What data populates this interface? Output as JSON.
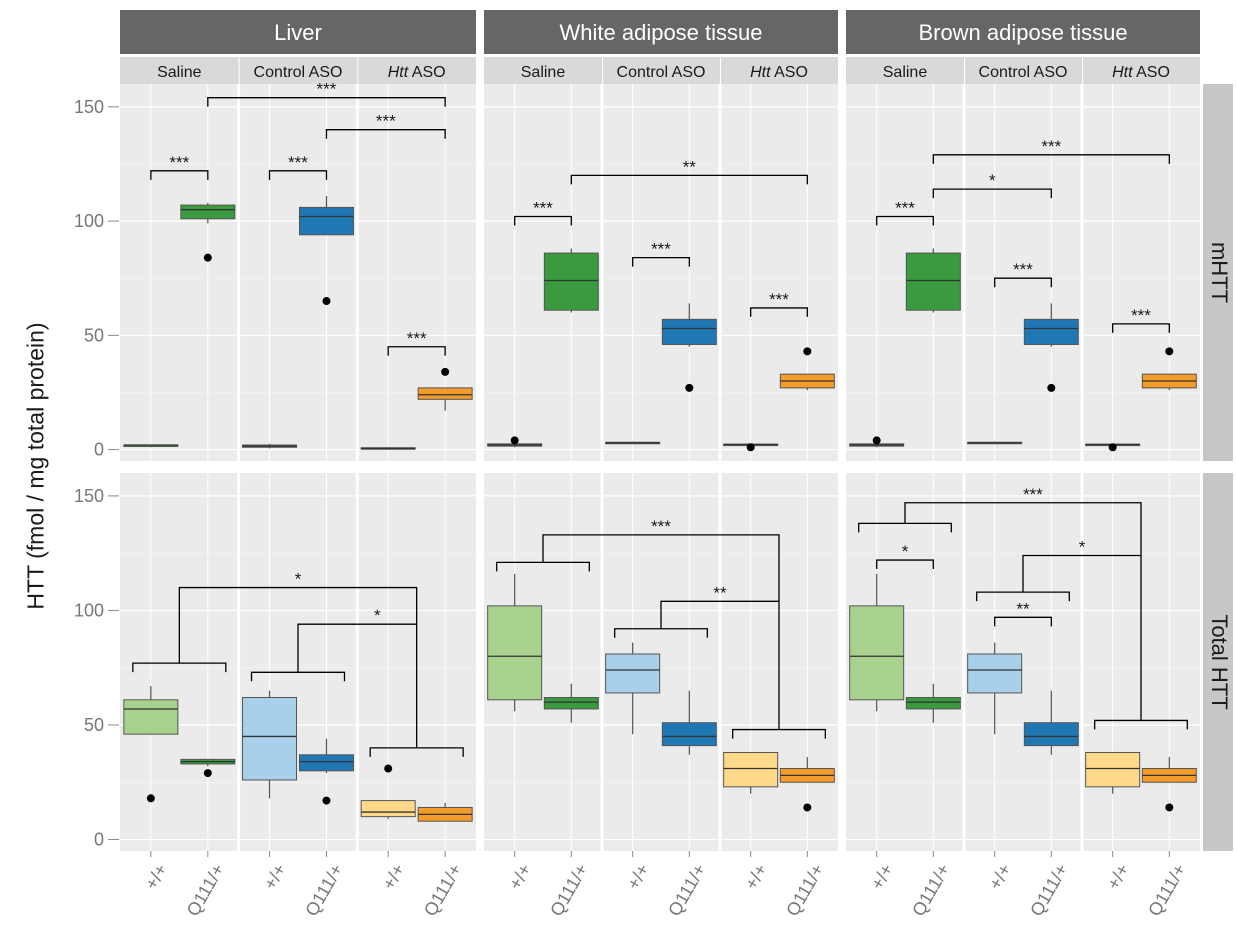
{
  "chart_data": {
    "type": "boxplot",
    "ylabel": "HTT (fmol / mg total protein)",
    "ylim": [
      -5,
      160
    ],
    "yticks": [
      0,
      50,
      100,
      150
    ],
    "grid": true,
    "panels": [
      "Liver",
      "White adipose tissue",
      "Brown adipose tissue"
    ],
    "groups": [
      {
        "label": "Saline",
        "italic_part": "",
        "rest": ""
      },
      {
        "label": "Control ASO",
        "italic_part": "",
        "rest": ""
      },
      {
        "label": "",
        "italic_part": "Htt",
        "rest": " ASO"
      }
    ],
    "genotypes": [
      "+/+",
      "Q111/+"
    ],
    "rows": [
      "mHTT",
      "Total HTT"
    ],
    "colors": {
      "saline_wt": "#a9d18e",
      "saline_mut": "#3a9a3e",
      "control_wt": "#a8d0ea",
      "control_mut": "#1f78b4",
      "htt_wt": "#ffd98a",
      "htt_mut": "#f39c2a"
    },
    "boxes": [
      [
        [
          [
            [
              1,
              2,
              2,
              2,
              2,
              []
            ],
            [
              99,
              101,
              105,
              107,
              108,
              [
                84
              ]
            ],
            [
              0.5,
              1,
              1.5,
              2,
              2.5,
              []
            ],
            [
              94,
              94,
              102,
              106,
              111,
              [
                65
              ]
            ],
            [
              0,
              0.2,
              0.5,
              0.8,
              1,
              []
            ],
            [
              17,
              22,
              24,
              27,
              27,
              [
                34
              ]
            ]
          ],
          [
            [
              1,
              1.5,
              2,
              2.5,
              3,
              [
                4
              ]
            ],
            [
              60,
              61,
              74,
              86,
              88,
              []
            ],
            [
              2.5,
              2.8,
              3,
              3.2,
              3.5,
              []
            ],
            [
              45,
              46,
              53,
              57,
              64,
              [
                27
              ]
            ],
            [
              1.8,
              2,
              2.2,
              2.4,
              2.6,
              [
                1
              ]
            ],
            [
              26,
              27,
              30,
              33,
              33,
              [
                43
              ]
            ]
          ],
          [
            [
              1,
              1.5,
              2,
              2.5,
              3,
              [
                4
              ]
            ],
            [
              60,
              61,
              74,
              86,
              88,
              []
            ],
            [
              2.5,
              2.8,
              3,
              3.2,
              3.5,
              []
            ],
            [
              45,
              46,
              53,
              57,
              64,
              [
                27
              ]
            ],
            [
              1.8,
              2,
              2.2,
              2.4,
              2.6,
              [
                1
              ]
            ],
            [
              26,
              27,
              30,
              33,
              33,
              [
                43
              ]
            ]
          ]
        ],
        [
          [
            [
              46,
              46,
              57,
              61,
              67,
              [
                18
              ]
            ],
            [
              32,
              33,
              34,
              35,
              35,
              [
                29
              ]
            ],
            [
              18,
              26,
              45,
              62,
              65,
              []
            ],
            [
              29,
              30,
              34,
              37,
              44,
              [
                17
              ]
            ],
            [
              9,
              10,
              12,
              17,
              17,
              [
                31
              ]
            ],
            [
              8,
              8,
              11,
              14,
              16,
              []
            ]
          ],
          [
            [
              56,
              61,
              80,
              102,
              116,
              []
            ],
            [
              51,
              57,
              60,
              62,
              68,
              []
            ],
            [
              46,
              64,
              74,
              81,
              86,
              []
            ],
            [
              37,
              41,
              45,
              51,
              65,
              []
            ],
            [
              20,
              23,
              31,
              38,
              38,
              []
            ],
            [
              25,
              25,
              28,
              31,
              36,
              [
                14
              ]
            ]
          ],
          [
            [
              56,
              61,
              80,
              102,
              116,
              []
            ],
            [
              51,
              57,
              60,
              62,
              68,
              []
            ],
            [
              46,
              64,
              74,
              81,
              86,
              []
            ],
            [
              37,
              41,
              45,
              51,
              65,
              []
            ],
            [
              20,
              23,
              31,
              38,
              38,
              []
            ],
            [
              25,
              25,
              28,
              31,
              36,
              [
                14
              ]
            ]
          ]
        ]
      ]
    ],
    "significance": [
      [
        [
          [
            "***",
            "bracket",
            0,
            1,
            122
          ],
          [
            "***",
            "bracket",
            2,
            3,
            122
          ],
          [
            "***",
            "bracket",
            4,
            5,
            45
          ],
          [
            "***",
            "bracket",
            1,
            5,
            154
          ],
          [
            "***",
            "bracket",
            3,
            5,
            140
          ]
        ],
        [
          [
            "***",
            "bracket",
            0,
            1,
            102
          ],
          [
            "***",
            "bracket",
            2,
            3,
            84
          ],
          [
            "***",
            "bracket",
            4,
            5,
            62
          ],
          [
            "**",
            "bracket",
            1,
            5,
            120
          ]
        ],
        [
          [
            "***",
            "bracket",
            0,
            1,
            102
          ],
          [
            "***",
            "bracket",
            2,
            3,
            75
          ],
          [
            "***",
            "bracket",
            4,
            5,
            55
          ],
          [
            "*",
            "bracket",
            1,
            3,
            114
          ],
          [
            "***",
            "bracket",
            1,
            5,
            129
          ]
        ]
      ],
      [
        [
          [
            "*",
            "nested",
            0,
            1,
            2,
            3,
            4,
            5,
            77,
            73,
            40,
            110,
            94
          ]
        ],
        [
          [
            "***",
            "nested2",
            0,
            1,
            2,
            3,
            4,
            5,
            121,
            92,
            48,
            133,
            104
          ]
        ],
        [
          [
            "***",
            "bdat"
          ]
        ]
      ]
    ],
    "sig_labels": [
      "***",
      "**",
      "*"
    ]
  }
}
